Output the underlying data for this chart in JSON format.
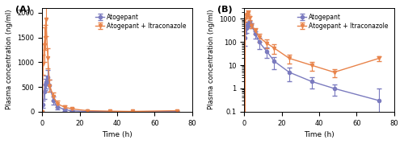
{
  "time": [
    0,
    0.5,
    1,
    1.5,
    2,
    3,
    4,
    6,
    8,
    12,
    16,
    24,
    36,
    48,
    72
  ],
  "atogepant_mean": [
    0,
    150,
    400,
    550,
    600,
    700,
    530,
    220,
    100,
    40,
    15,
    5,
    2,
    1,
    0.3
  ],
  "atogepant_sd": [
    0,
    80,
    150,
    120,
    130,
    140,
    120,
    80,
    50,
    20,
    8,
    3,
    1,
    0.5,
    0.7
  ],
  "combo_mean": [
    0,
    950,
    1350,
    1500,
    1870,
    1080,
    520,
    310,
    160,
    90,
    55,
    20,
    10,
    5,
    20
  ],
  "combo_sd": [
    0,
    200,
    350,
    250,
    350,
    200,
    120,
    80,
    60,
    35,
    25,
    8,
    4,
    2,
    5
  ],
  "atogepant_color": "#7B7BBF",
  "combo_color": "#E8834A",
  "ylabel": "Plasma concentration (ng/ml)",
  "xlabel": "Time (h)",
  "label_atogepant": "Atogepant",
  "label_combo": "Atogepant + Itraconazole",
  "xlim": [
    0,
    80
  ],
  "ylim_linear": [
    0,
    2100
  ],
  "ylim_log": [
    0.1,
    3000
  ],
  "xticks": [
    0,
    20,
    40,
    60,
    80
  ],
  "yticks_linear": [
    0,
    500,
    1000,
    1500,
    2000
  ],
  "panel_A": "A",
  "panel_B": "B"
}
